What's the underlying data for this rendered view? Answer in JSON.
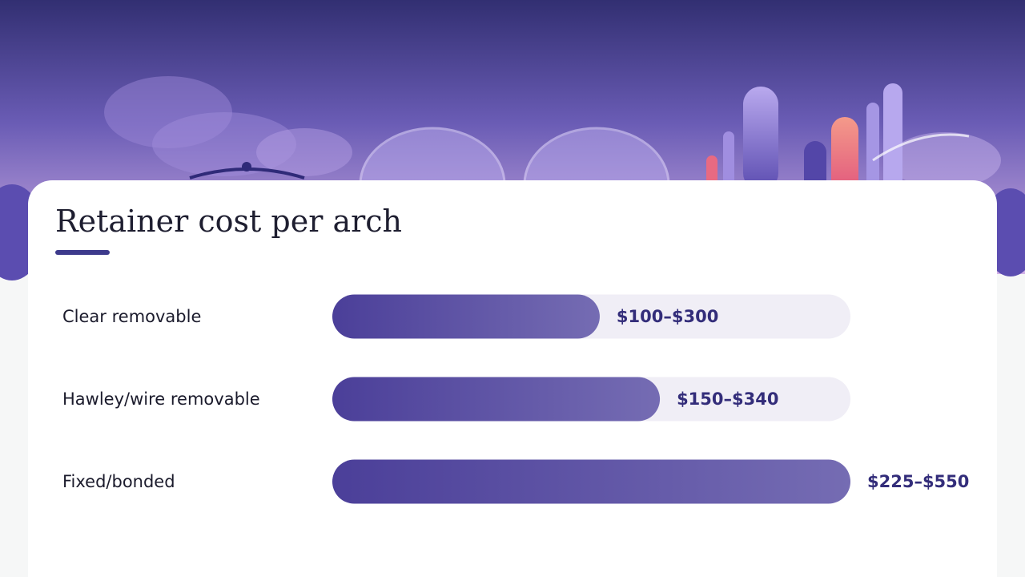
{
  "chart_data": {
    "type": "bar",
    "title": "Retainer cost per arch",
    "categories": [
      "Clear removable",
      "Hawley/wire removable",
      "Fixed/bonded"
    ],
    "values": [
      [
        100,
        300
      ],
      [
        150,
        340
      ],
      [
        225,
        550
      ]
    ],
    "value_labels": [
      "$100–$300",
      "$150–$340",
      "$225–$550"
    ],
    "color": "#4c3f9a"
  }
}
